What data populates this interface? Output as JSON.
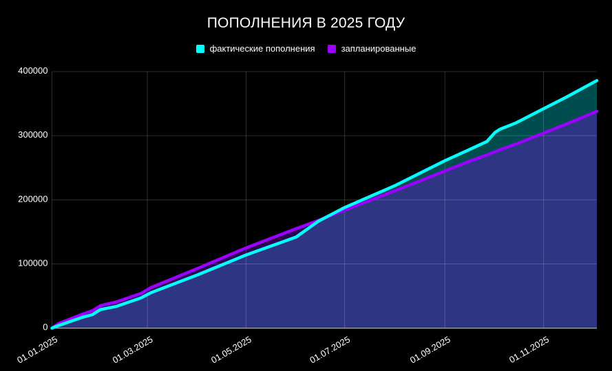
{
  "chart_data": {
    "type": "area",
    "title": "ПОПОЛНЕНИЯ В 2025 ГОДУ",
    "xlabel": "",
    "ylabel": "",
    "legend_position": "top",
    "grid": true,
    "ylim": [
      0,
      400000
    ],
    "y_ticks": [
      "0",
      "100000",
      "200000",
      "300000",
      "400000"
    ],
    "x_ticks": [
      "01.01.2025",
      "01.03.2025",
      "01.05.2025",
      "01.07.2025",
      "01.09.2025",
      "01.11.2025"
    ],
    "xlim": [
      "2025-01-01",
      "2025-12-04"
    ],
    "x": [
      "2025-01-01",
      "2025-01-05",
      "2025-01-20",
      "2025-01-26",
      "2025-01-31",
      "2025-02-10",
      "2025-02-25",
      "2025-03-03",
      "2025-04-01",
      "2025-05-01",
      "2025-06-01",
      "2025-06-15",
      "2025-07-01",
      "2025-08-01",
      "2025-09-01",
      "2025-09-15",
      "2025-09-27",
      "2025-10-02",
      "2025-10-05",
      "2025-10-15",
      "2025-11-01",
      "2025-11-15",
      "2025-12-04"
    ],
    "series": [
      {
        "name": "фактические пополнения",
        "color": "#00ffff",
        "values": [
          0,
          4000,
          17000,
          21000,
          29000,
          34000,
          47000,
          55000,
          83000,
          114000,
          142000,
          167000,
          188000,
          222000,
          261000,
          277000,
          291000,
          305000,
          310000,
          320000,
          342000,
          360000,
          386000
        ]
      },
      {
        "name": "запланированные",
        "color": "#9900ff",
        "values": [
          0,
          7000,
          22000,
          27000,
          35000,
          41000,
          54000,
          63000,
          93000,
          125000,
          155000,
          168000,
          184000,
          214000,
          245000,
          259000,
          270000,
          275000,
          278000,
          287000,
          304000,
          318000,
          338000
        ]
      }
    ]
  }
}
